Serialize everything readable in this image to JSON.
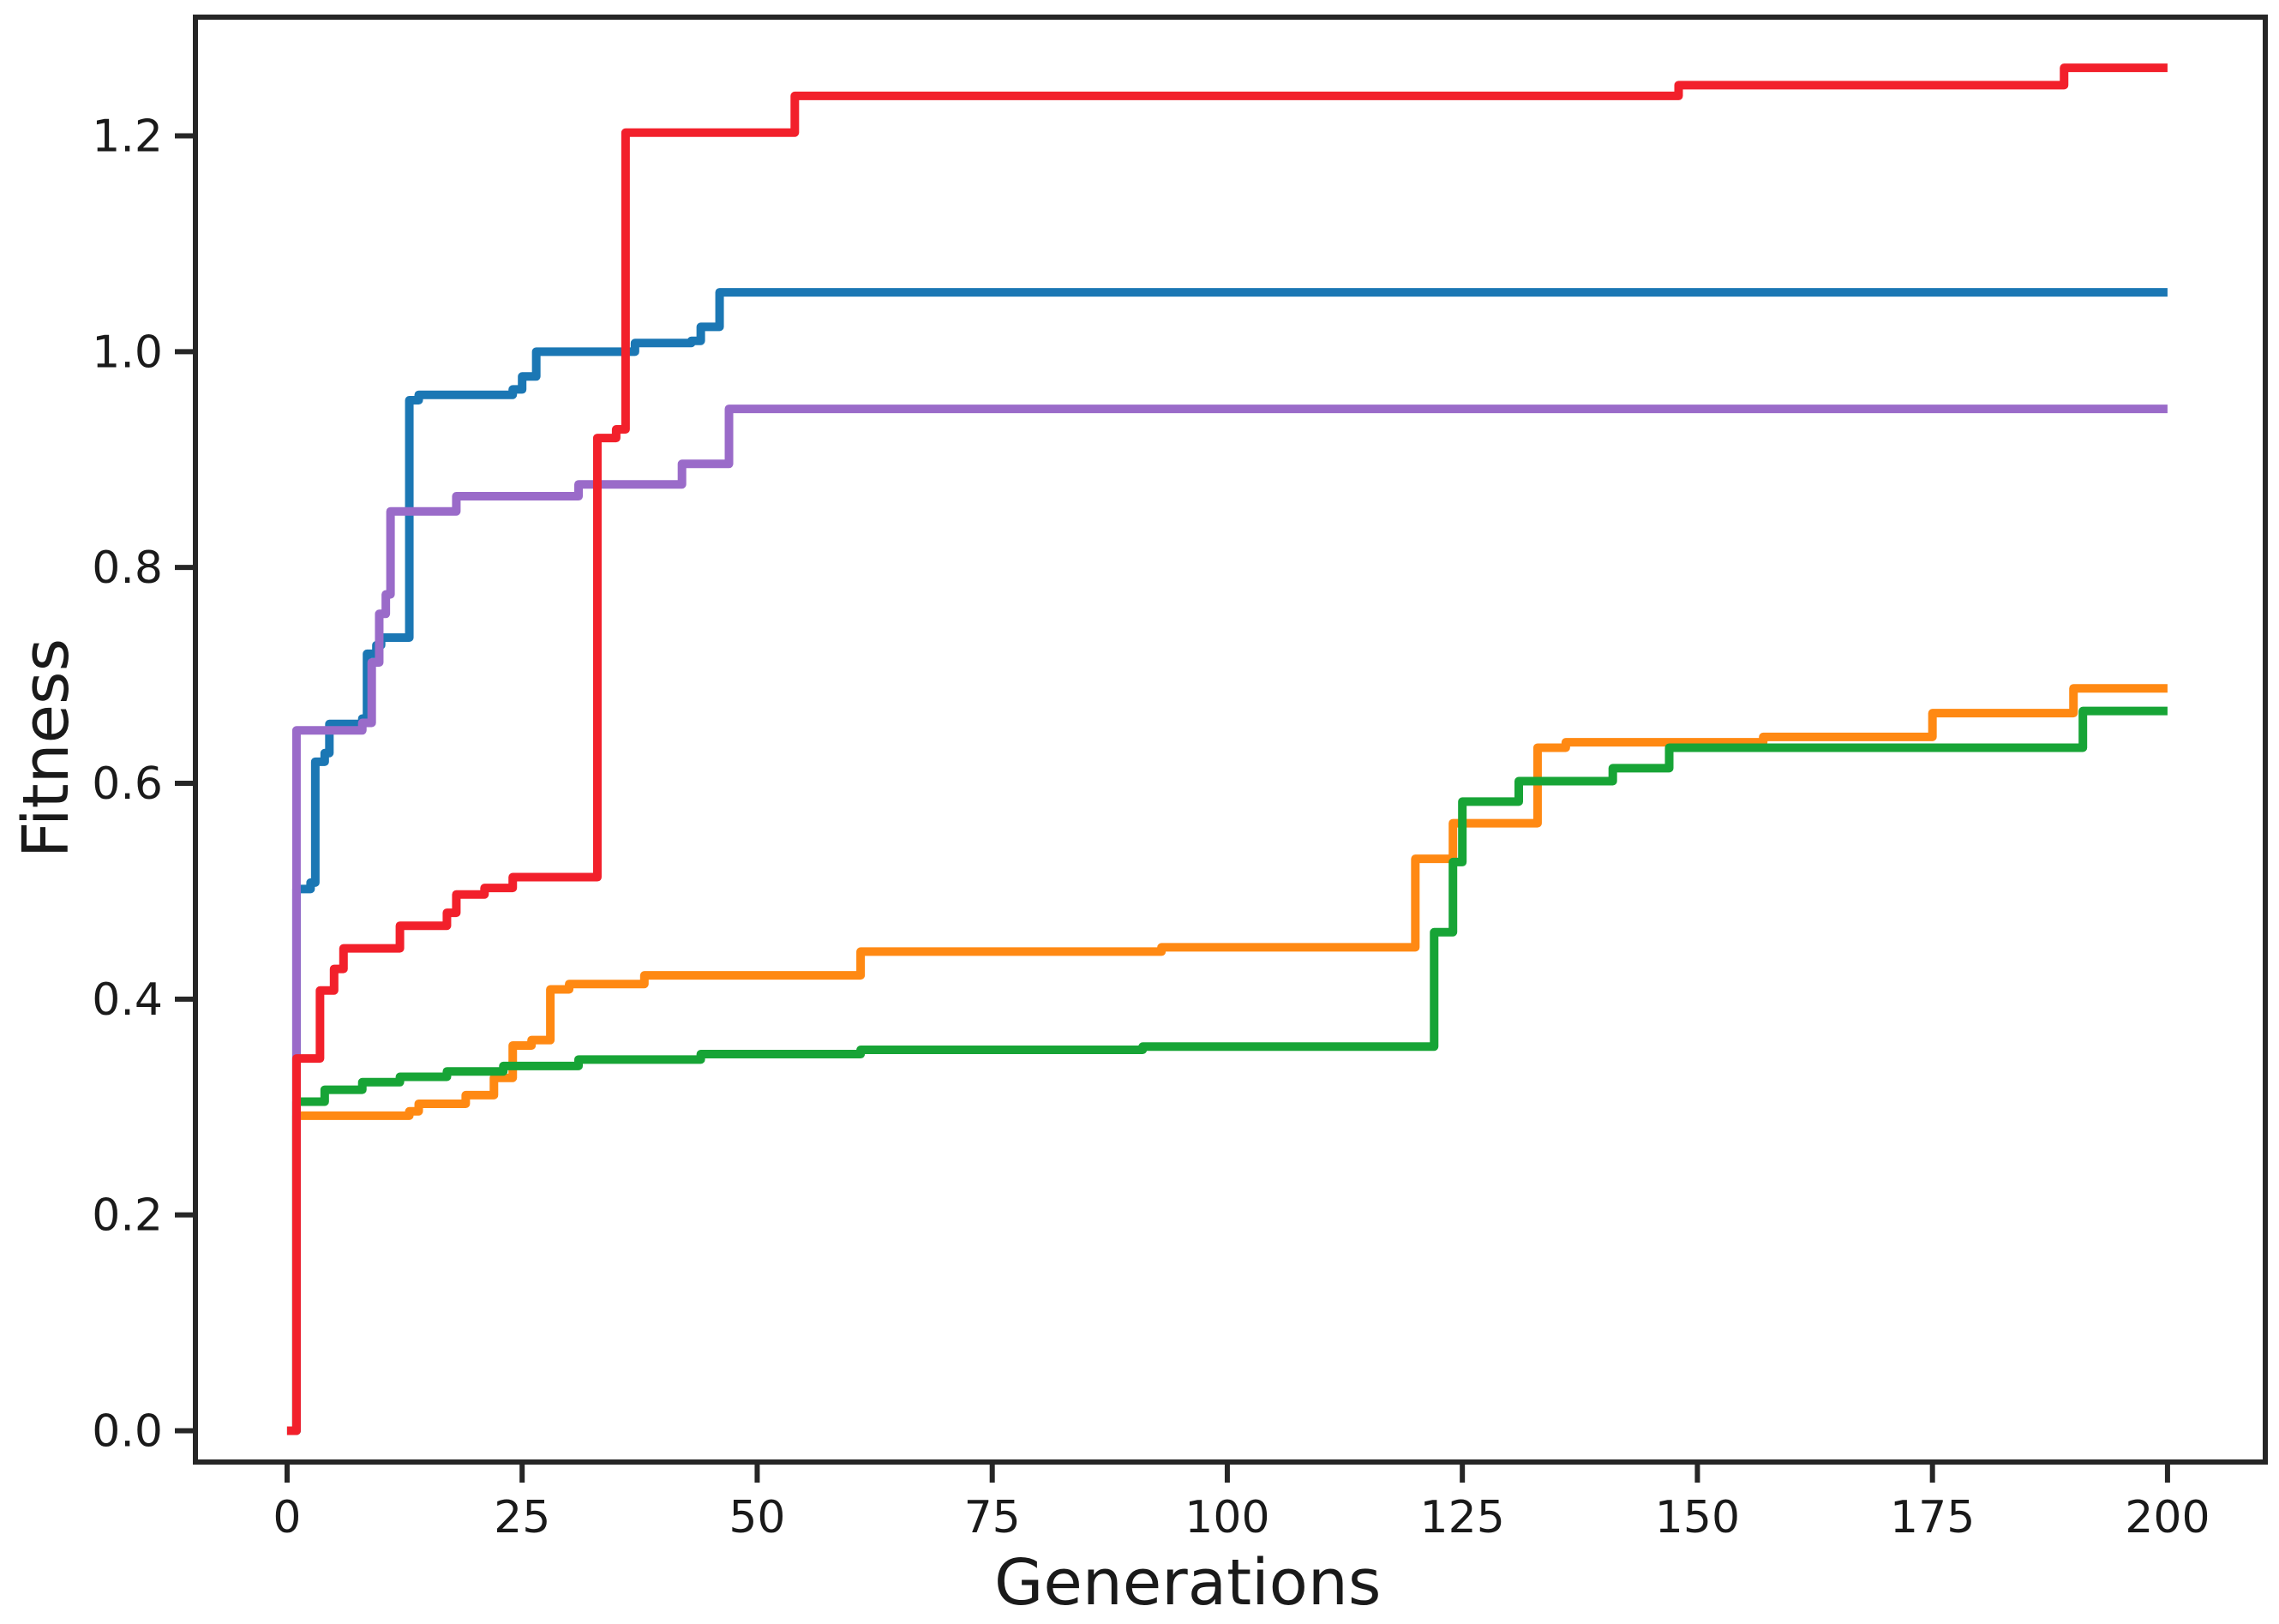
{
  "figure": {
    "background": "#ffffff",
    "text_color": "#1a1a1a",
    "spine_color": "#262626"
  },
  "chart_data": {
    "type": "line",
    "title": "",
    "xlabel": "Generations",
    "ylabel": "Fitness",
    "x_tick_labels": [
      "0",
      "25",
      "50",
      "75",
      "100",
      "125",
      "150",
      "175",
      "200"
    ],
    "x_tick_values": [
      0,
      25,
      50,
      75,
      100,
      125,
      150,
      175,
      200
    ],
    "y_tick_labels": [
      "0.0",
      "0.2",
      "0.4",
      "0.6",
      "0.8",
      "1.0",
      "1.2"
    ],
    "y_tick_values": [
      0.0,
      0.2,
      0.4,
      0.6,
      0.8,
      1.0,
      1.2
    ],
    "xlim": [
      -9.75,
      210.4
    ],
    "ylim": [
      -0.029,
      1.31
    ],
    "grid": false,
    "legend": "none",
    "line_width": 10,
    "step_mode": "post",
    "series": [
      {
        "name": "blue",
        "color": "#1b77b4",
        "points": [
          [
            0,
            0
          ],
          [
            1,
            0.502
          ],
          [
            2.5,
            0.508
          ],
          [
            3,
            0.62
          ],
          [
            4,
            0.628
          ],
          [
            4.5,
            0.655
          ],
          [
            8,
            0.66
          ],
          [
            8.5,
            0.72
          ],
          [
            9.5,
            0.728
          ],
          [
            10,
            0.735
          ],
          [
            13,
            0.955
          ],
          [
            14,
            0.96
          ],
          [
            24,
            0.965
          ],
          [
            25,
            0.977
          ],
          [
            26.5,
            1.0
          ],
          [
            37,
            1.008
          ],
          [
            43,
            1.01
          ],
          [
            44,
            1.023
          ],
          [
            46,
            1.055
          ],
          [
            200,
            1.055
          ]
        ]
      },
      {
        "name": "orange",
        "color": "#ff8913",
        "points": [
          [
            0,
            0
          ],
          [
            1,
            0.292
          ],
          [
            13,
            0.296
          ],
          [
            14,
            0.303
          ],
          [
            19,
            0.311
          ],
          [
            22,
            0.327
          ],
          [
            24,
            0.357
          ],
          [
            26,
            0.362
          ],
          [
            28,
            0.409
          ],
          [
            30,
            0.414
          ],
          [
            38,
            0.422
          ],
          [
            61,
            0.444
          ],
          [
            93,
            0.448
          ],
          [
            120,
            0.53
          ],
          [
            124,
            0.563
          ],
          [
            133,
            0.633
          ],
          [
            136,
            0.638
          ],
          [
            157,
            0.643
          ],
          [
            175,
            0.665
          ],
          [
            190,
            0.688
          ],
          [
            200,
            0.688
          ]
        ]
      },
      {
        "name": "green",
        "color": "#17a436",
        "points": [
          [
            0,
            0
          ],
          [
            1,
            0.305
          ],
          [
            4,
            0.316
          ],
          [
            8,
            0.323
          ],
          [
            12,
            0.328
          ],
          [
            17,
            0.333
          ],
          [
            23,
            0.338
          ],
          [
            31,
            0.344
          ],
          [
            44,
            0.349
          ],
          [
            61,
            0.353
          ],
          [
            91,
            0.356
          ],
          [
            122,
            0.462
          ],
          [
            124,
            0.527
          ],
          [
            125,
            0.583
          ],
          [
            131,
            0.602
          ],
          [
            141,
            0.614
          ],
          [
            147,
            0.633
          ],
          [
            191,
            0.667
          ],
          [
            200,
            0.667
          ]
        ]
      },
      {
        "name": "purple",
        "color": "#9a6bc9",
        "points": [
          [
            0,
            0
          ],
          [
            1,
            0.649
          ],
          [
            8,
            0.656
          ],
          [
            9,
            0.712
          ],
          [
            9.8,
            0.757
          ],
          [
            10.5,
            0.775
          ],
          [
            11,
            0.852
          ],
          [
            18,
            0.866
          ],
          [
            31,
            0.877
          ],
          [
            42,
            0.896
          ],
          [
            47,
            0.947
          ],
          [
            200,
            0.947
          ]
        ]
      },
      {
        "name": "red",
        "color": "#f2202b",
        "points": [
          [
            0,
            0
          ],
          [
            1,
            0.345
          ],
          [
            3.5,
            0.408
          ],
          [
            5,
            0.428
          ],
          [
            6,
            0.447
          ],
          [
            12,
            0.468
          ],
          [
            17,
            0.48
          ],
          [
            18,
            0.497
          ],
          [
            21,
            0.503
          ],
          [
            24,
            0.513
          ],
          [
            33,
            0.92
          ],
          [
            35,
            0.928
          ],
          [
            36,
            1.203
          ],
          [
            54,
            1.237
          ],
          [
            148,
            1.247
          ],
          [
            189,
            1.263
          ],
          [
            200,
            1.263
          ]
        ]
      }
    ]
  }
}
